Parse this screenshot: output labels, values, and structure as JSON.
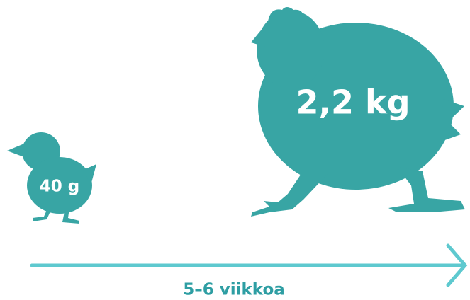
{
  "chick": {
    "label": "40 g"
  },
  "chicken": {
    "label": "2,2 kg"
  },
  "arrow": {
    "label": "5–6 viikkoa"
  }
}
